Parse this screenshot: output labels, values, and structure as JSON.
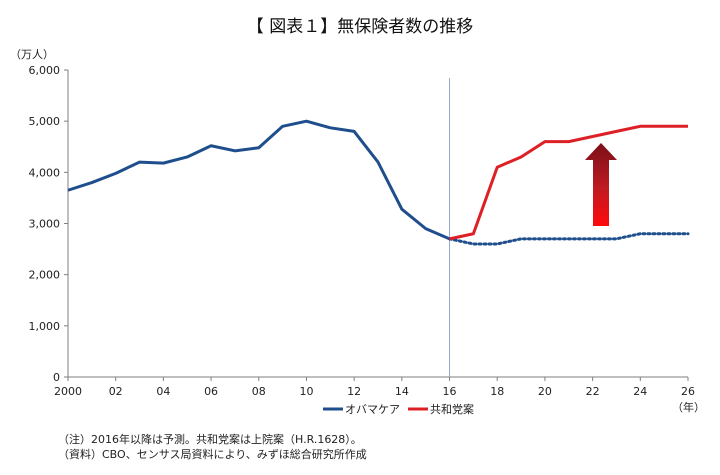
{
  "chart_data": {
    "type": "line",
    "title": "【 図表１】無保険者数の推移",
    "y_unit": "（万人）",
    "x_unit": "（年）",
    "ylim": [
      0,
      6000
    ],
    "xlim": [
      2000,
      2026
    ],
    "y_ticks": [
      "0",
      "1,000",
      "2,000",
      "3,000",
      "4,000",
      "5,000",
      "6,000"
    ],
    "x_tick_values": [
      2000,
      2002,
      2004,
      2006,
      2008,
      2010,
      2012,
      2014,
      2016,
      2018,
      2020,
      2022,
      2024,
      2026
    ],
    "x_ticks": [
      "2000",
      "02",
      "04",
      "06",
      "08",
      "10",
      "12",
      "14",
      "16",
      "18",
      "20",
      "22",
      "24",
      "26"
    ],
    "grid": false,
    "forecast_start": 2016,
    "series": [
      {
        "name": "オバマケア",
        "color": "#1f4e8c",
        "x": [
          2000,
          2001,
          2002,
          2003,
          2004,
          2005,
          2006,
          2007,
          2008,
          2009,
          2010,
          2011,
          2012,
          2013,
          2014,
          2015,
          2016,
          2017,
          2018,
          2019,
          2020,
          2021,
          2022,
          2023,
          2024,
          2025,
          2026
        ],
        "values": [
          3650,
          3800,
          3980,
          4200,
          4180,
          4300,
          4520,
          4420,
          4480,
          4900,
          5000,
          4870,
          4800,
          4200,
          3280,
          2900,
          2700,
          2600,
          2600,
          2700,
          2700,
          2700,
          2700,
          2700,
          2800,
          2800,
          2800
        ],
        "dotted_from": 2016
      },
      {
        "name": "共和党案",
        "color": "#dd1f26",
        "x": [
          2016,
          2017,
          2018,
          2019,
          2020,
          2021,
          2022,
          2023,
          2024,
          2025,
          2026
        ],
        "values": [
          2700,
          2800,
          4100,
          4300,
          4600,
          4600,
          4700,
          4800,
          4900,
          4900,
          4900
        ]
      }
    ],
    "legend_position": "bottom-center"
  },
  "notes": [
    "（注）2016年以降は予測。共和党案は上院案（H.R.1628）。",
    "（資料）CBO、センサス局資料により、みずほ総合研究所作成"
  ]
}
